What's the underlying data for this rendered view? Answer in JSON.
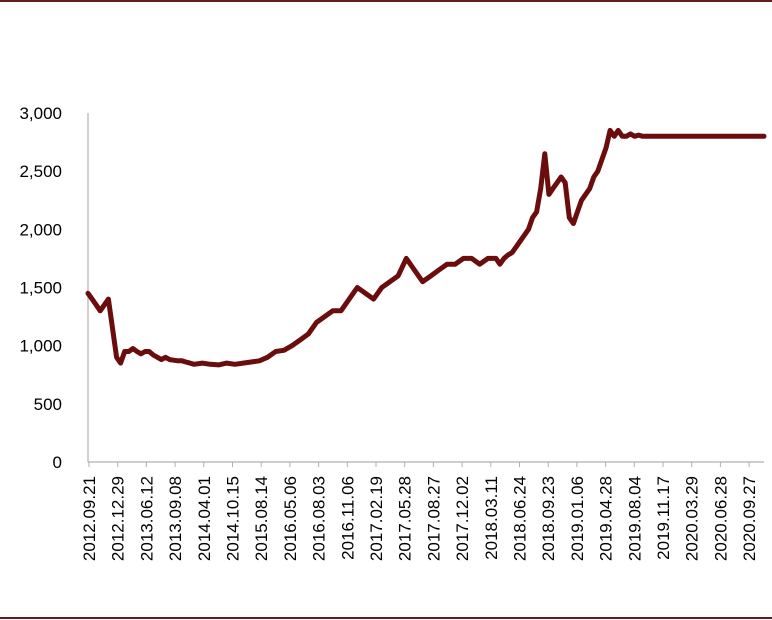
{
  "chart_data": {
    "type": "line",
    "title": "",
    "xlabel": "",
    "ylabel": "",
    "ylim": [
      0,
      3000
    ],
    "yticks": [
      0,
      500,
      1000,
      1500,
      2000,
      2500,
      3000
    ],
    "ytick_labels": [
      "0",
      "500",
      "1,000",
      "1,500",
      "2,000",
      "2,500",
      "3,000"
    ],
    "x_start": "2012.09.21",
    "x_end": "2020.11.20",
    "xtick_labels": [
      "2012.09.21",
      "2012.12.29",
      "2013.06.12",
      "2013.09.08",
      "2014.04.01",
      "2014.10.15",
      "2015.08.14",
      "2016.05.06",
      "2016.08.03",
      "2016.11.06",
      "2017.02.19",
      "2017.05.28",
      "2017.08.27",
      "2017.12.02",
      "2018.03.11",
      "2018.06.24",
      "2018.09.23",
      "2019.01.06",
      "2019.04.28",
      "2019.08.04",
      "2019.11.17",
      "2020.03.29",
      "2020.06.28",
      "2020.09.27"
    ],
    "grid": false,
    "legend": "none",
    "line_color": "#6b0d0d",
    "series": [
      {
        "x": [
          "2012.09.21",
          "2012.10.09",
          "2012.10.27",
          "2012.11.14",
          "2012.12.02",
          "2012.12.20",
          "2013.01.07",
          "2013.01.25",
          "2013.02.12",
          "2013.03.02",
          "2013.03.20",
          "2013.04.07",
          "2013.04.25",
          "2013.05.13",
          "2013.05.31",
          "2013.06.18",
          "2013.07.06",
          "2013.07.24",
          "2013.08.11",
          "2013.08.29",
          "2013.09.16",
          "2013.10.04",
          "2013.10.22",
          "2013.11.09",
          "2013.11.27",
          "2013.12.15",
          "2014.01.02",
          "2014.02.07",
          "2014.03.15",
          "2014.04.20",
          "2014.05.26",
          "2014.07.01",
          "2014.08.06",
          "2014.09.11",
          "2014.10.17",
          "2014.11.22",
          "2014.12.28",
          "2015.02.02",
          "2015.03.10",
          "2015.04.15",
          "2015.05.21",
          "2015.06.26",
          "2015.08.01",
          "2015.09.06",
          "2015.10.12",
          "2015.11.17",
          "2015.12.23",
          "2016.01.28",
          "2016.03.04",
          "2016.04.09",
          "2016.05.15",
          "2016.06.20",
          "2016.07.26",
          "2016.08.31",
          "2016.10.06",
          "2016.11.11",
          "2016.12.17",
          "2017.01.22",
          "2017.02.27",
          "2017.04.04",
          "2017.05.10",
          "2017.06.15",
          "2017.07.21",
          "2017.08.26",
          "2017.09.12",
          "2017.09.30",
          "2017.10.18",
          "2017.11.05",
          "2017.11.23",
          "2017.12.11",
          "2017.12.29",
          "2018.01.16",
          "2018.02.03",
          "2018.02.21",
          "2018.03.11",
          "2018.03.29",
          "2018.04.16",
          "2018.05.04",
          "2018.05.22",
          "2018.06.09",
          "2018.06.27",
          "2018.07.15",
          "2018.08.02",
          "2018.08.20",
          "2018.09.07",
          "2018.09.25",
          "2018.10.13",
          "2018.10.31",
          "2018.11.18",
          "2018.12.06",
          "2018.12.24",
          "2019.01.11",
          "2019.01.29",
          "2019.02.16",
          "2019.03.06",
          "2019.03.24",
          "2019.04.11",
          "2019.04.29",
          "2019.05.17",
          "2019.06.04",
          "2019.06.22",
          "2019.07.10",
          "2019.07.28",
          "2019.08.15",
          "2019.09.02",
          "2019.09.20",
          "2019.10.08",
          "2019.10.26",
          "2019.11.13",
          "2019.12.01",
          "2019.12.19",
          "2020.01.06",
          "2020.01.24",
          "2020.02.11",
          "2020.02.29",
          "2020.03.18",
          "2020.04.05",
          "2020.04.23",
          "2020.05.11",
          "2020.05.29",
          "2020.06.16",
          "2020.07.04",
          "2020.07.22",
          "2020.08.09",
          "2020.08.27",
          "2020.09.14",
          "2020.10.02",
          "2020.10.20",
          "2020.11.07",
          "2020.11.20"
        ],
        "values": [
          1450,
          1400,
          1350,
          1300,
          1350,
          1400,
          1150,
          900,
          850,
          950,
          950,
          975,
          950,
          930,
          950,
          950,
          920,
          900,
          880,
          900,
          880,
          875,
          870,
          870,
          860,
          850,
          840,
          850,
          840,
          835,
          850,
          840,
          850,
          860,
          870,
          900,
          950,
          960,
          1000,
          1050,
          1100,
          1200,
          1250,
          1300,
          1300,
          1400,
          1500,
          1450,
          1400,
          1500,
          1550,
          1600,
          1750,
          1650,
          1550,
          1600,
          1650,
          1700,
          1700,
          1750,
          1750,
          1700,
          1750,
          1750,
          1700,
          1750,
          1780,
          1800,
          1850,
          1900,
          1950,
          2000,
          2100,
          2150,
          2350,
          2650,
          2300,
          2350,
          2400,
          2450,
          2400,
          2100,
          2050,
          2150,
          2250,
          2300,
          2350,
          2450,
          2500,
          2600,
          2700,
          2850,
          2800,
          2850,
          2800,
          2800,
          2820,
          2800,
          2810,
          2800,
          2800,
          2800,
          2800,
          2800,
          2800,
          2800,
          2800,
          2800,
          2800,
          2800,
          2800,
          2800,
          2800,
          2800,
          2800,
          2800,
          2800,
          2800,
          2800,
          2800,
          2800,
          2800,
          2800,
          2800,
          2800,
          2800,
          2800,
          2800,
          2800,
          2800
        ]
      }
    ]
  }
}
